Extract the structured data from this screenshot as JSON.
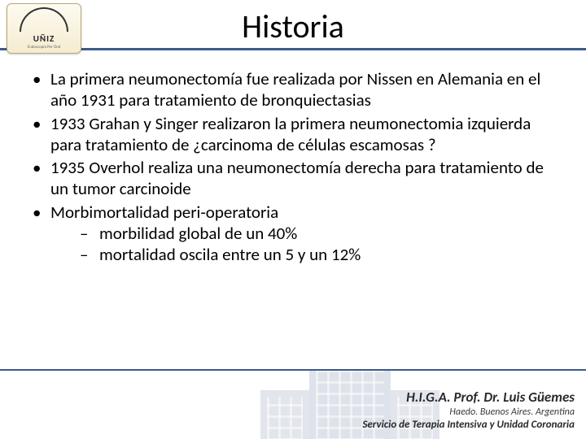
{
  "logo": {
    "text": "UÑIZ",
    "sub": "Endoscopía Per Oral"
  },
  "title": "Historia",
  "bullets": [
    "La primera neumonectomía fue realizada por Nissen en Alemania en el año 1931 para tratamiento de bronquiectasias",
    "1933 Grahan y Singer realizaron la primera neumonectomia izquierda para tratamiento de  ¿carcinoma de células escamosas ?",
    "1935 Overhol realiza una neumonectomía derecha para  tratamiento de un tumor carcinoide",
    "Morbimortalidad peri-operatoria"
  ],
  "sub_bullets": [
    "morbilidad global de un 40%",
    " mortalidad oscila entre un 5 y un 12%"
  ],
  "footer": {
    "line1": "H.I.G.A. Prof. Dr. Luis Güemes",
    "line2": "Haedo. Buenos Aires. Argentina",
    "line3": "Servicio de Terapia Intensiva y Unidad Coronaria"
  },
  "colors": {
    "rule": "#3a5a8a",
    "text": "#000000",
    "bg": "#ffffff"
  }
}
